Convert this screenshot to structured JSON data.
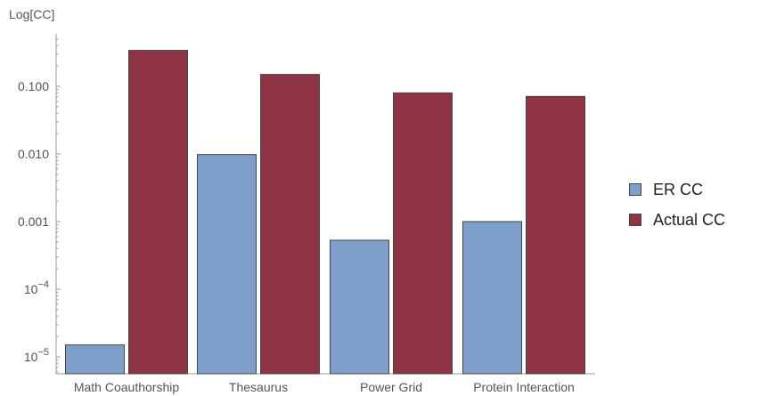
{
  "chart_data": {
    "type": "bar",
    "ylabel": "Log[CC]",
    "yscale": "log",
    "ylim": [
      7.5e-06,
      1.0
    ],
    "yticks": [
      {
        "value": 1e-05,
        "base": "10",
        "exp": "−5"
      },
      {
        "value": 0.0001,
        "base": "10",
        "exp": "−4"
      },
      {
        "value": 0.001,
        "label": "0.001"
      },
      {
        "value": 0.01,
        "label": "0.010"
      },
      {
        "value": 0.1,
        "label": "0.100"
      }
    ],
    "categories": [
      "Math Coauthorship",
      "Thesaurus",
      "Power Grid",
      "Protein Interaction"
    ],
    "series": [
      {
        "name": "ER CC",
        "color": "#7f9fcb",
        "values": [
          1.5e-05,
          0.0098,
          0.00053,
          0.001
        ]
      },
      {
        "name": "Actual CC",
        "color": "#8e3444",
        "values": [
          0.34,
          0.15,
          0.08,
          0.071
        ]
      }
    ],
    "legend_position": "right",
    "grid": false
  }
}
